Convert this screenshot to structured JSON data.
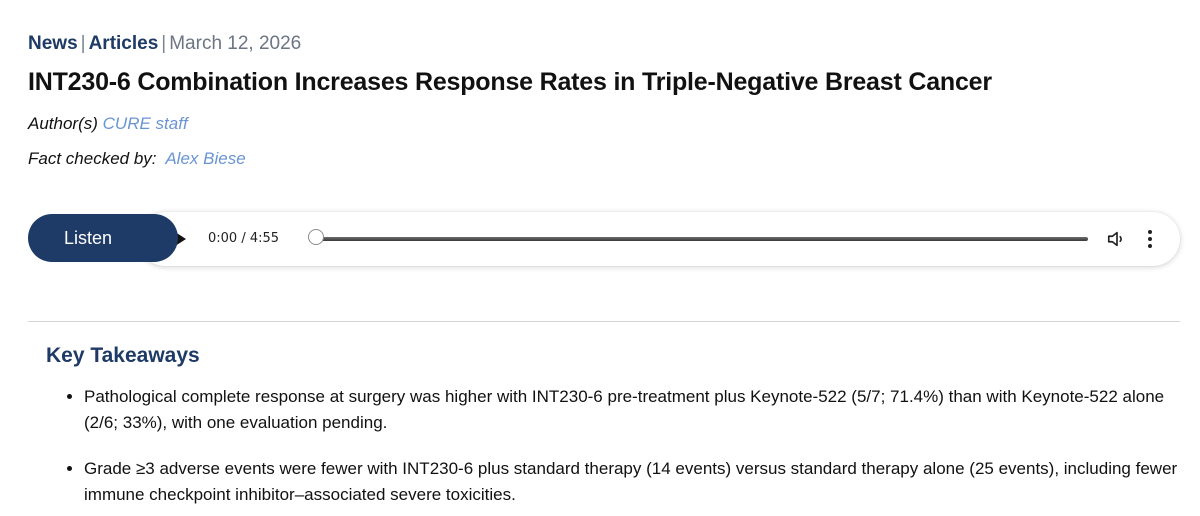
{
  "breadcrumb": {
    "items": [
      "News",
      "Articles"
    ],
    "separator": "|",
    "date": "March 12, 2026"
  },
  "article": {
    "title": "INT230-6 Combination Increases Response Rates in Triple-Negative Breast Cancer",
    "author_label": "Author(s)",
    "author_name": "CURE staff",
    "fact_label": "Fact checked by:",
    "fact_name": "Alex Biese"
  },
  "player": {
    "listen_label": "Listen",
    "time": "0:00 / 4:55",
    "progress": 0,
    "icons": {
      "play": "play-icon",
      "volume": "volume-icon",
      "more": "more-options-icon"
    }
  },
  "key_takeaways": {
    "title": "Key Takeaways",
    "items": [
      "Pathological complete response at surgery was higher with INT230-6 pre-treatment plus Keynote-522 (5/7; 71.4%) than with Keynote-522 alone (2/6; 33%), with one evaluation pending.",
      "Grade ≥3 adverse events were fewer with INT230-6 plus standard therapy (14 events) versus standard therapy alone (25 events), including fewer immune checkpoint inhibitor–associated severe toxicities."
    ]
  },
  "colors": {
    "brand_navy": "#1e3a66",
    "link_blue": "#6a94d4",
    "muted_gray": "#6b7584"
  }
}
